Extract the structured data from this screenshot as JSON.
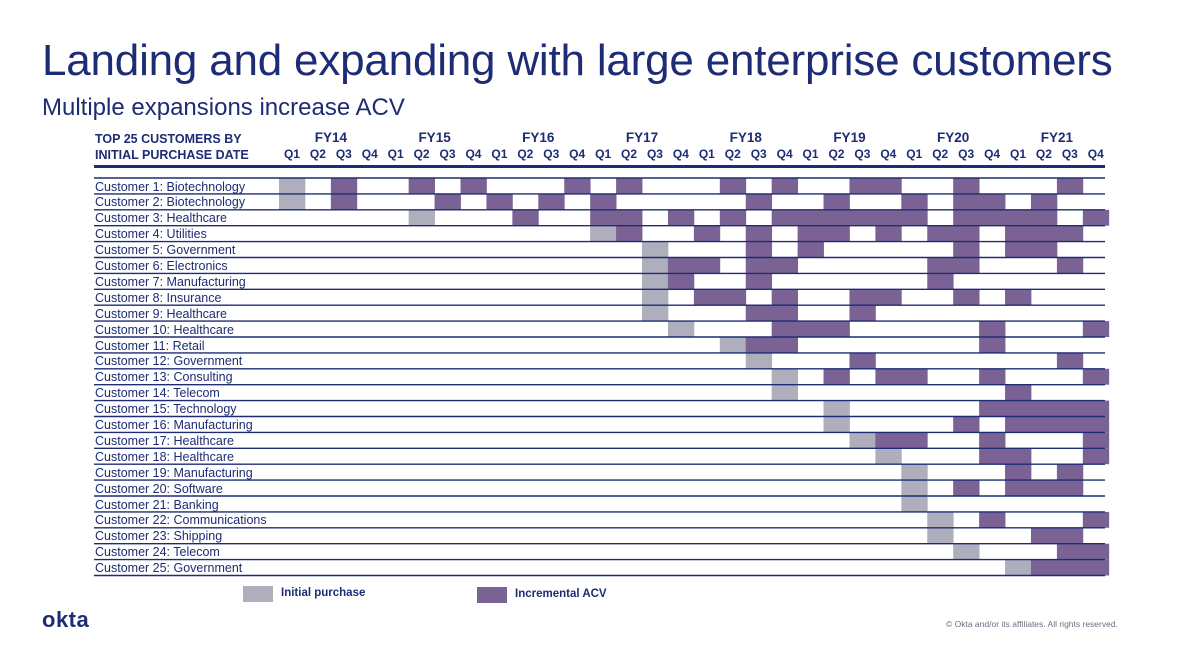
{
  "title": "Landing and expanding with large enterprise customers",
  "subtitle": "Multiple expansions increase ACV",
  "header_line1": "TOP 25 CUSTOMERS BY",
  "header_line2": "INITIAL PURCHASE DATE",
  "legend": {
    "initial": "Initial purchase",
    "incremental": "Incremental ACV"
  },
  "colors": {
    "initial": "#aeaebd",
    "incremental": "#7b6294",
    "text": "#1d2c74",
    "rule": "#1d2c74"
  },
  "logo": "okta",
  "copyright": "© Okta and/or its affiliates. All rights reserved.",
  "chart_data": {
    "type": "table",
    "fiscal_years": [
      "FY14",
      "FY15",
      "FY16",
      "FY17",
      "FY18",
      "FY19",
      "FY20",
      "FY21"
    ],
    "quarters": [
      "Q1",
      "Q2",
      "Q3",
      "Q4"
    ],
    "rows": [
      {
        "label": "Customer 1: Biotechnology",
        "initial": 0,
        "incremental": [
          2,
          5,
          7,
          11,
          13,
          17,
          19,
          22,
          23,
          26,
          30
        ]
      },
      {
        "label": "Customer 2: Biotechnology",
        "initial": 0,
        "incremental": [
          2,
          6,
          8,
          10,
          12,
          18,
          21,
          24,
          26,
          27,
          29
        ]
      },
      {
        "label": "Customer 3: Healthcare",
        "initial": 5,
        "incremental": [
          9,
          12,
          13,
          15,
          17,
          19,
          20,
          21,
          22,
          23,
          24,
          26,
          27,
          28,
          29,
          31
        ]
      },
      {
        "label": "Customer 4: Utilities",
        "initial": 12,
        "incremental": [
          13,
          16,
          18,
          20,
          21,
          23,
          25,
          26,
          28,
          29,
          30
        ]
      },
      {
        "label": "Customer 5: Government",
        "initial": 14,
        "incremental": [
          18,
          20,
          26,
          28,
          29
        ]
      },
      {
        "label": "Customer 6: Electronics",
        "initial": 14,
        "incremental": [
          15,
          16,
          18,
          19,
          25,
          26,
          30
        ]
      },
      {
        "label": "Customer 7: Manufacturing",
        "initial": 14,
        "incremental": [
          15,
          18,
          25
        ]
      },
      {
        "label": "Customer 8: Insurance",
        "initial": 14,
        "incremental": [
          16,
          17,
          19,
          22,
          23,
          26,
          28
        ]
      },
      {
        "label": "Customer 9: Healthcare",
        "initial": 14,
        "incremental": [
          18,
          19,
          22
        ]
      },
      {
        "label": "Customer 10: Healthcare",
        "initial": 15,
        "incremental": [
          19,
          20,
          21,
          27,
          31
        ]
      },
      {
        "label": "Customer 11: Retail",
        "initial": 17,
        "incremental": [
          18,
          19,
          27
        ]
      },
      {
        "label": "Customer 12: Government",
        "initial": 18,
        "incremental": [
          22,
          30
        ]
      },
      {
        "label": "Customer 13: Consulting",
        "initial": 19,
        "incremental": [
          21,
          23,
          24,
          27,
          31
        ]
      },
      {
        "label": "Customer 14: Telecom",
        "initial": 19,
        "incremental": [
          28
        ]
      },
      {
        "label": "Customer 15: Technology",
        "initial": 21,
        "incremental": [
          27,
          28,
          29,
          30,
          31
        ]
      },
      {
        "label": "Customer 16: Manufacturing",
        "initial": 21,
        "incremental": [
          26,
          28,
          29,
          30,
          31
        ]
      },
      {
        "label": "Customer 17: Healthcare",
        "initial": 22,
        "incremental": [
          23,
          24,
          27,
          31
        ]
      },
      {
        "label": "Customer 18: Healthcare",
        "initial": 23,
        "incremental": [
          27,
          28,
          31
        ]
      },
      {
        "label": "Customer 19: Manufacturing",
        "initial": 24,
        "incremental": [
          28,
          30
        ]
      },
      {
        "label": "Customer 20: Software",
        "initial": 24,
        "incremental": [
          26,
          28,
          29,
          30
        ]
      },
      {
        "label": "Customer 21: Banking",
        "initial": 24,
        "incremental": []
      },
      {
        "label": "Customer 22: Communications",
        "initial": 25,
        "incremental": [
          27,
          31
        ]
      },
      {
        "label": "Customer 23: Shipping",
        "initial": 25,
        "incremental": [
          29,
          30
        ]
      },
      {
        "label": "Customer 24: Telecom",
        "initial": 26,
        "incremental": [
          30,
          31
        ]
      },
      {
        "label": "Customer 25: Government",
        "initial": 28,
        "incremental": [
          29,
          30,
          31
        ]
      }
    ]
  }
}
